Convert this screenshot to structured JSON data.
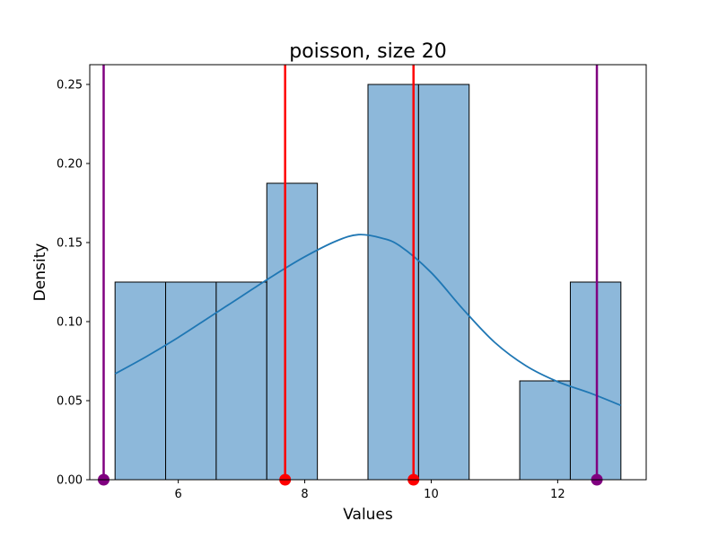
{
  "chart_data": {
    "type": "bar",
    "title": "poisson, size 20",
    "xlabel": "Values",
    "ylabel": "Density",
    "xlim": [
      4.6,
      13.4
    ],
    "ylim": [
      0,
      0.2625
    ],
    "xticks": [
      6,
      8,
      10,
      12
    ],
    "yticks": [
      0.0,
      0.05,
      0.1,
      0.15,
      0.2,
      0.25
    ],
    "grid": false,
    "histogram": {
      "bins": [
        {
          "x0": 5.0,
          "x1": 5.8,
          "density": 0.125
        },
        {
          "x0": 5.8,
          "x1": 6.6,
          "density": 0.125
        },
        {
          "x0": 6.6,
          "x1": 7.4,
          "density": 0.125
        },
        {
          "x0": 7.4,
          "x1": 8.2,
          "density": 0.1875
        },
        {
          "x0": 9.0,
          "x1": 9.8,
          "density": 0.25
        },
        {
          "x0": 9.8,
          "x1": 10.6,
          "density": 0.25
        },
        {
          "x0": 11.4,
          "x1": 12.2,
          "density": 0.0625
        },
        {
          "x0": 12.2,
          "x1": 13.0,
          "density": 0.125
        }
      ],
      "fill_color": "#8db8da",
      "edge_color": "#000000"
    },
    "kde": {
      "color": "#1f77b4",
      "x": [
        5.0,
        5.5,
        6.0,
        6.5,
        7.0,
        7.5,
        8.0,
        8.5,
        8.85,
        9.2,
        9.5,
        10.0,
        10.5,
        11.0,
        11.5,
        12.0,
        12.5,
        13.0
      ],
      "y": [
        0.067,
        0.078,
        0.09,
        0.103,
        0.116,
        0.129,
        0.141,
        0.151,
        0.155,
        0.153,
        0.148,
        0.131,
        0.108,
        0.087,
        0.072,
        0.062,
        0.055,
        0.047
      ]
    },
    "vertical_lines": [
      {
        "x": 4.82,
        "color": "#800080"
      },
      {
        "x": 7.69,
        "color": "#ff0000"
      },
      {
        "x": 9.72,
        "color": "#ff0000"
      },
      {
        "x": 12.62,
        "color": "#800080"
      }
    ]
  }
}
